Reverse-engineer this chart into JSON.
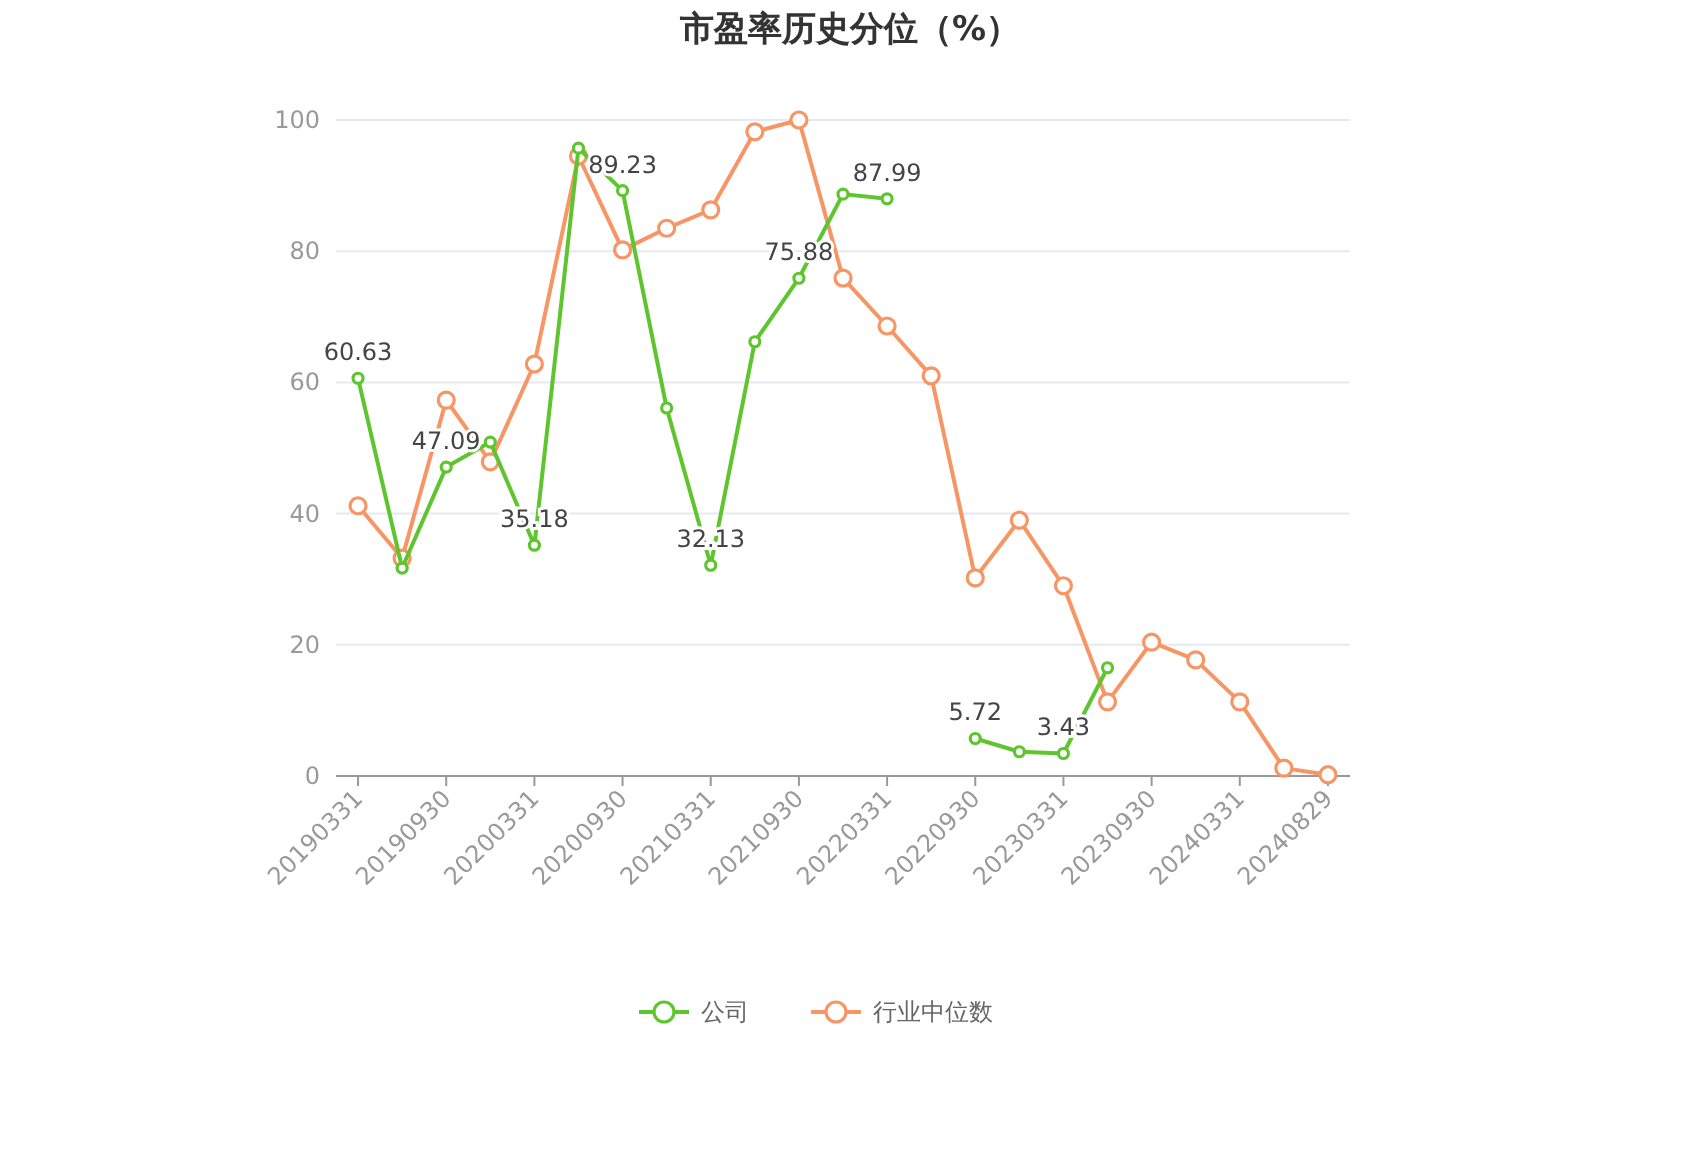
{
  "chart_data": {
    "type": "line",
    "title": "市盈率历史分位（%）",
    "categories": [
      "20190331",
      null,
      "20190930",
      null,
      "20200331",
      null,
      "20200930",
      null,
      "20210331",
      null,
      "20210930",
      null,
      "20220331",
      null,
      "20220930",
      null,
      "20230331",
      null,
      "20230930",
      null,
      "20240331",
      null,
      "20240829"
    ],
    "series": [
      {
        "name": "公司",
        "color": "#5ec52e",
        "values": [
          60.63,
          31.7,
          47.09,
          50.9,
          35.18,
          95.7,
          89.23,
          56.1,
          32.13,
          66.2,
          75.88,
          88.7,
          87.99,
          null,
          5.72,
          3.7,
          3.43,
          16.5,
          null,
          null,
          null,
          null,
          null
        ],
        "value_labels": [
          "60.63",
          null,
          "47.09",
          null,
          "35.18",
          null,
          "89.23",
          null,
          "32.13",
          null,
          "75.88",
          null,
          "87.99",
          null,
          "5.72",
          null,
          "3.43",
          null,
          null,
          null,
          null,
          null,
          null
        ]
      },
      {
        "name": "行业中位数",
        "color": "#f79565",
        "values": [
          41.2,
          33.2,
          57.3,
          47.9,
          62.8,
          94.5,
          80.2,
          83.5,
          86.3,
          98.2,
          100,
          75.9,
          68.6,
          61,
          30.2,
          39,
          29,
          11.3,
          20.4,
          17.7,
          11.3,
          1.2,
          0.2
        ]
      }
    ],
    "ylim": [
      0,
      100
    ],
    "yticks": [
      0,
      20,
      40,
      60,
      80,
      100
    ],
    "grid": "y",
    "legend": "bottom",
    "marker": "circle"
  }
}
